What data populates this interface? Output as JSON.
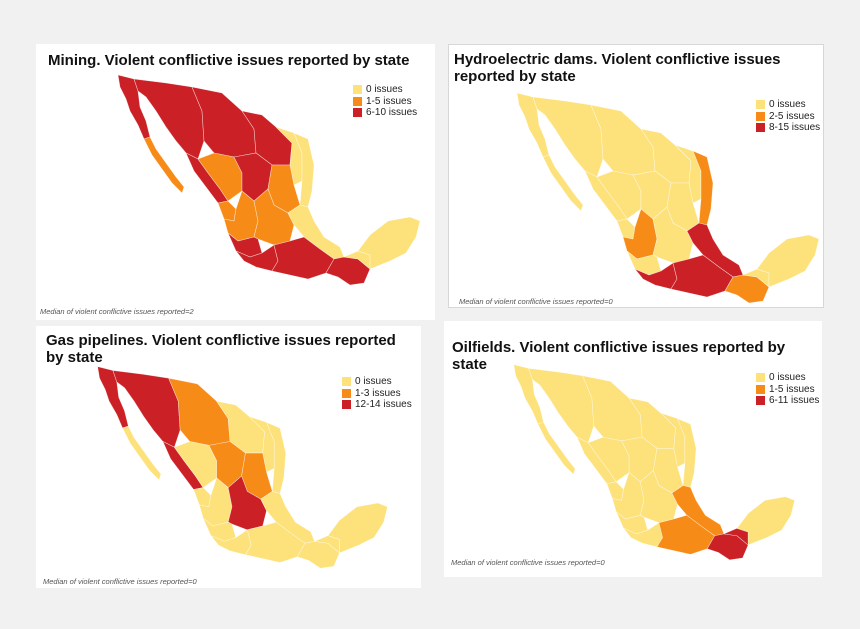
{
  "colors": {
    "none": "#fde17a",
    "low": "#f78b17",
    "high": "#cb2126",
    "background": "#f1f1f1"
  },
  "panels": [
    {
      "title": "Mining. Violent conflictive issues reported by state",
      "legend": [
        "0 issues",
        "1-5 issues",
        "6-10 issues"
      ],
      "note": "Median of violent conflictive issues reported=2"
    },
    {
      "title": "Hydroelectric dams. Violent conflictive issues reported by state",
      "legend": [
        "0 issues",
        "2-5 issues",
        "8-15 issues"
      ],
      "note": "Median of violent conflictive issues reported=0"
    },
    {
      "title": "Gas pipelines. Violent conflictive issues reported by state",
      "legend": [
        "0 issues",
        "1-3 issues",
        "12-14 issues"
      ],
      "note": "Median of violent conflictive issues reported=0"
    },
    {
      "title": "Oilfields. Violent conflictive issues reported by state",
      "legend": [
        "0 issues",
        "1-5 issues",
        "6-11 issues"
      ],
      "note": "Median of violent conflictive issues reported=0"
    }
  ],
  "regions": [
    "baja-california",
    "baja-california-sur",
    "sonora",
    "chihuahua",
    "coahuila",
    "nuevo-leon",
    "tamaulipas",
    "sinaloa",
    "durango",
    "zacatecas",
    "san-luis-potosi",
    "nayarit",
    "jalisco",
    "central-states",
    "veracruz",
    "michoacan",
    "guerrero",
    "oaxaca",
    "chiapas",
    "tabasco",
    "yucatan-peninsula"
  ],
  "region_levels": [
    [
      "high",
      "low",
      "high",
      "high",
      "high",
      "none",
      "none",
      "high",
      "low",
      "high",
      "low",
      "low",
      "low",
      "low",
      "none",
      "high",
      "high",
      "high",
      "high",
      "none",
      "none"
    ],
    [
      "none",
      "none",
      "none",
      "none",
      "none",
      "none",
      "low",
      "none",
      "none",
      "none",
      "none",
      "none",
      "low",
      "none",
      "high",
      "none",
      "high",
      "high",
      "low",
      "none",
      "none"
    ],
    [
      "high",
      "none",
      "high",
      "low",
      "none",
      "none",
      "none",
      "high",
      "none",
      "low",
      "low",
      "none",
      "none",
      "high",
      "none",
      "none",
      "none",
      "none",
      "none",
      "none",
      "none"
    ],
    [
      "none",
      "none",
      "none",
      "none",
      "none",
      "none",
      "none",
      "none",
      "none",
      "none",
      "none",
      "none",
      "none",
      "none",
      "low",
      "none",
      "none",
      "low",
      "high",
      "high",
      "none"
    ]
  ]
}
